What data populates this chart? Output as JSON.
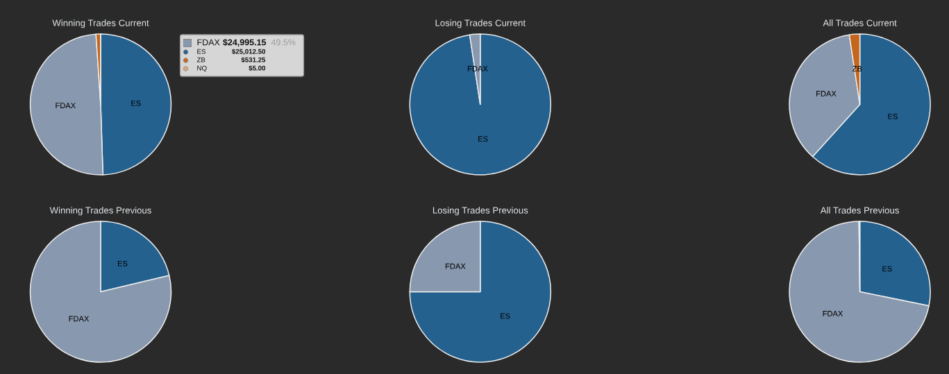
{
  "chart_data": [
    {
      "type": "pie",
      "title": "Winning Trades Current",
      "categories": [
        "ES",
        "FDAX",
        "ZB",
        "NQ"
      ],
      "values": [
        25012.5,
        24995.15,
        531.25,
        5.0
      ],
      "colors": [
        "#24618f",
        "#8898ae",
        "#c4661c",
        "#e0a574"
      ],
      "value_labels": [
        "$25,012.50",
        "$24,995.15",
        "$531.25",
        "$5.00"
      ],
      "legend": "top right",
      "annotations": [
        {
          "text": "49.5%",
          "x": "FDAX"
        }
      ]
    },
    {
      "type": "pie",
      "title": "Losing Trades Current",
      "categories": [
        "ES",
        "FDAX"
      ],
      "values": [
        97.6,
        2.4
      ],
      "colors": [
        "#24618f",
        "#8898ae"
      ]
    },
    {
      "type": "pie",
      "title": "All Trades Current",
      "categories": [
        "ES",
        "FDAX",
        "ZB"
      ],
      "values": [
        61.7,
        35.9,
        2.4
      ],
      "colors": [
        "#24618f",
        "#8898ae",
        "#c4661c"
      ]
    },
    {
      "type": "pie",
      "title": "Winning Trades Previous",
      "categories": [
        "ES",
        "FDAX"
      ],
      "values": [
        21.3,
        78.7
      ],
      "colors": [
        "#24618f",
        "#8898ae"
      ]
    },
    {
      "type": "pie",
      "title": "Losing Trades Previous",
      "categories": [
        "ES",
        "FDAX"
      ],
      "values": [
        75,
        25
      ],
      "colors": [
        "#24618f",
        "#8898ae"
      ]
    },
    {
      "type": "pie",
      "title": "All Trades Previous",
      "categories": [
        "ES",
        "FDAX",
        null
      ],
      "values": [
        28.2,
        71.6,
        0.2
      ],
      "colors": [
        "#24618f",
        "#8898ae",
        "#e0a574"
      ]
    }
  ]
}
